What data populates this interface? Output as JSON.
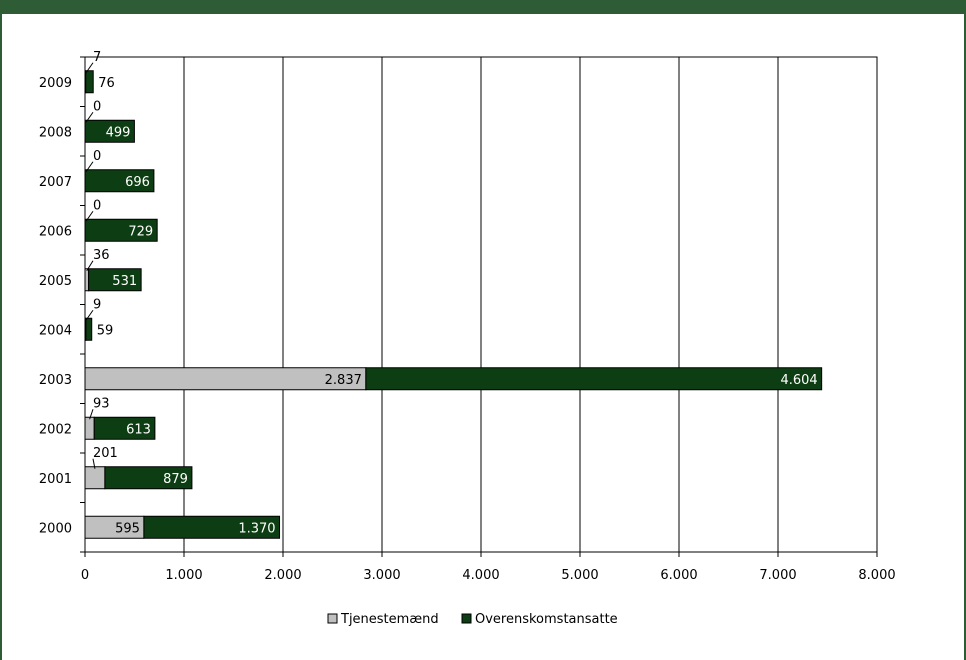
{
  "chart_data": {
    "type": "bar",
    "orientation": "horizontal",
    "stacked": true,
    "categories": [
      "2000",
      "2001",
      "2002",
      "2003",
      "2004",
      "2005",
      "2006",
      "2007",
      "2008",
      "2009"
    ],
    "series": [
      {
        "name": "Tjenestemænd",
        "color": "#c0c0c0",
        "values": [
          595,
          201,
          93,
          2837,
          9,
          36,
          0,
          0,
          0,
          7
        ],
        "labels": [
          "595",
          "201",
          "93",
          "2.837",
          "9",
          "36",
          "0",
          "0",
          "0",
          "7"
        ]
      },
      {
        "name": "Overenskomstansatte",
        "color": "#0d3d12",
        "values": [
          1370,
          879,
          613,
          4604,
          59,
          531,
          729,
          696,
          499,
          76
        ],
        "labels": [
          "1.370",
          "879",
          "613",
          "4.604",
          "59",
          "531",
          "729",
          "696",
          "499",
          "76"
        ]
      }
    ],
    "xlim": [
      0,
      8000
    ],
    "xticks": [
      0,
      1000,
      2000,
      3000,
      4000,
      5000,
      6000,
      7000,
      8000
    ],
    "xtick_labels": [
      "0",
      "1.000",
      "2.000",
      "3.000",
      "4.000",
      "5.000",
      "6.000",
      "7.000",
      "8.000"
    ],
    "grid": "vertical",
    "legend_position": "bottom"
  }
}
